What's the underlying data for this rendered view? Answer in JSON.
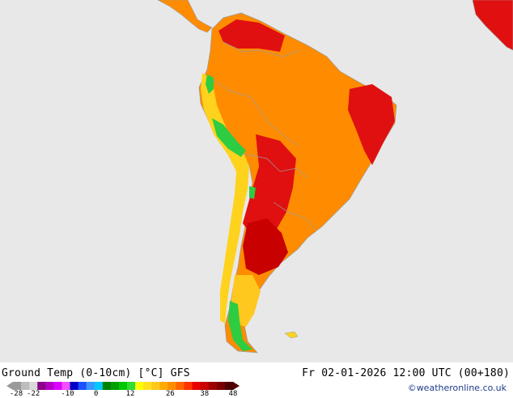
{
  "map": {
    "region": "South America",
    "land_color": "#ff8c00",
    "sea_color": "#e8e8e8",
    "hot_color": "#e01010",
    "very_hot_color": "#c80000",
    "cool_color": "#2ecc40",
    "mild_color": "#ffd21e"
  },
  "footer": {
    "title": "Ground Temp (0-10cm) [°C] GFS",
    "datetime": "Fr 02-01-2026 12:00 UTC (00+180)",
    "credit": "©weatheronline.co.uk"
  },
  "legend": {
    "ticks": [
      "-28",
      "-22",
      "-10",
      "0",
      "12",
      "26",
      "38",
      "48"
    ],
    "colors": [
      "#9a9a9a",
      "#bdbdbd",
      "#d8d8d8",
      "#8b008b",
      "#b400c8",
      "#dc00ff",
      "#f050ff",
      "#0000c8",
      "#1e50ff",
      "#3c96ff",
      "#00c8ff",
      "#008200",
      "#00a000",
      "#00c800",
      "#32dc32",
      "#ffff00",
      "#ffe11e",
      "#ffc81e",
      "#ffaa00",
      "#ff8c00",
      "#ff6400",
      "#ff3200",
      "#e60000",
      "#c80000",
      "#a00000",
      "#780000",
      "#500000"
    ]
  }
}
